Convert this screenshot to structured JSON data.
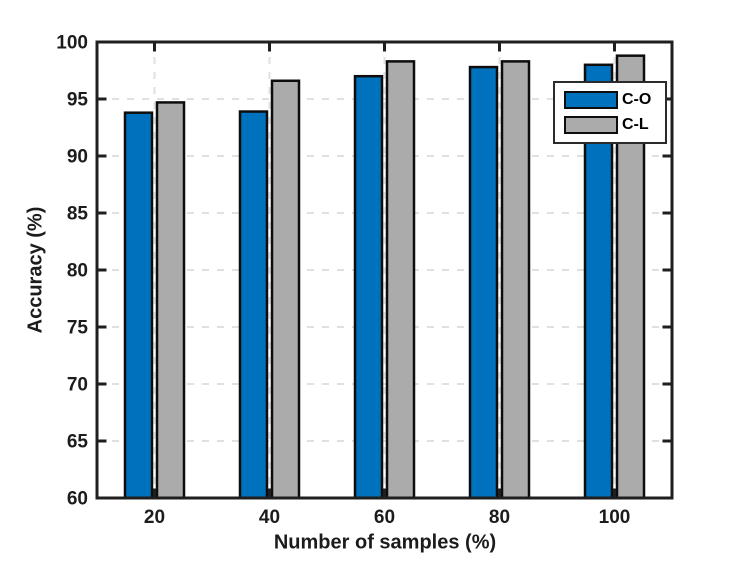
{
  "chart_data": {
    "type": "bar",
    "title": "",
    "xlabel": "Number of samples (%)",
    "ylabel": "Accuracy (%)",
    "categories": [
      "20",
      "40",
      "60",
      "80",
      "100"
    ],
    "series": [
      {
        "name": "C-O",
        "color": "#0072BD",
        "values": [
          93.8,
          93.9,
          97.0,
          97.8,
          98.0
        ]
      },
      {
        "name": "C-L",
        "color": "#ABABAB",
        "values": [
          94.7,
          96.6,
          98.3,
          98.3,
          98.8
        ]
      }
    ],
    "ylim": [
      60,
      100
    ],
    "ytick_step": 5,
    "ytick_labels": [
      "60",
      "65",
      "70",
      "75",
      "80",
      "85",
      "90",
      "95",
      "100"
    ],
    "grid": true,
    "grid_style": "dashed",
    "grid_color": "#e0e0e0",
    "axis_color": "#1f1f1f",
    "text_color": "#1c1c1c",
    "bar_edge_color": "#0d0d0d",
    "background": "#ffffff",
    "legend_position": "top-right"
  }
}
